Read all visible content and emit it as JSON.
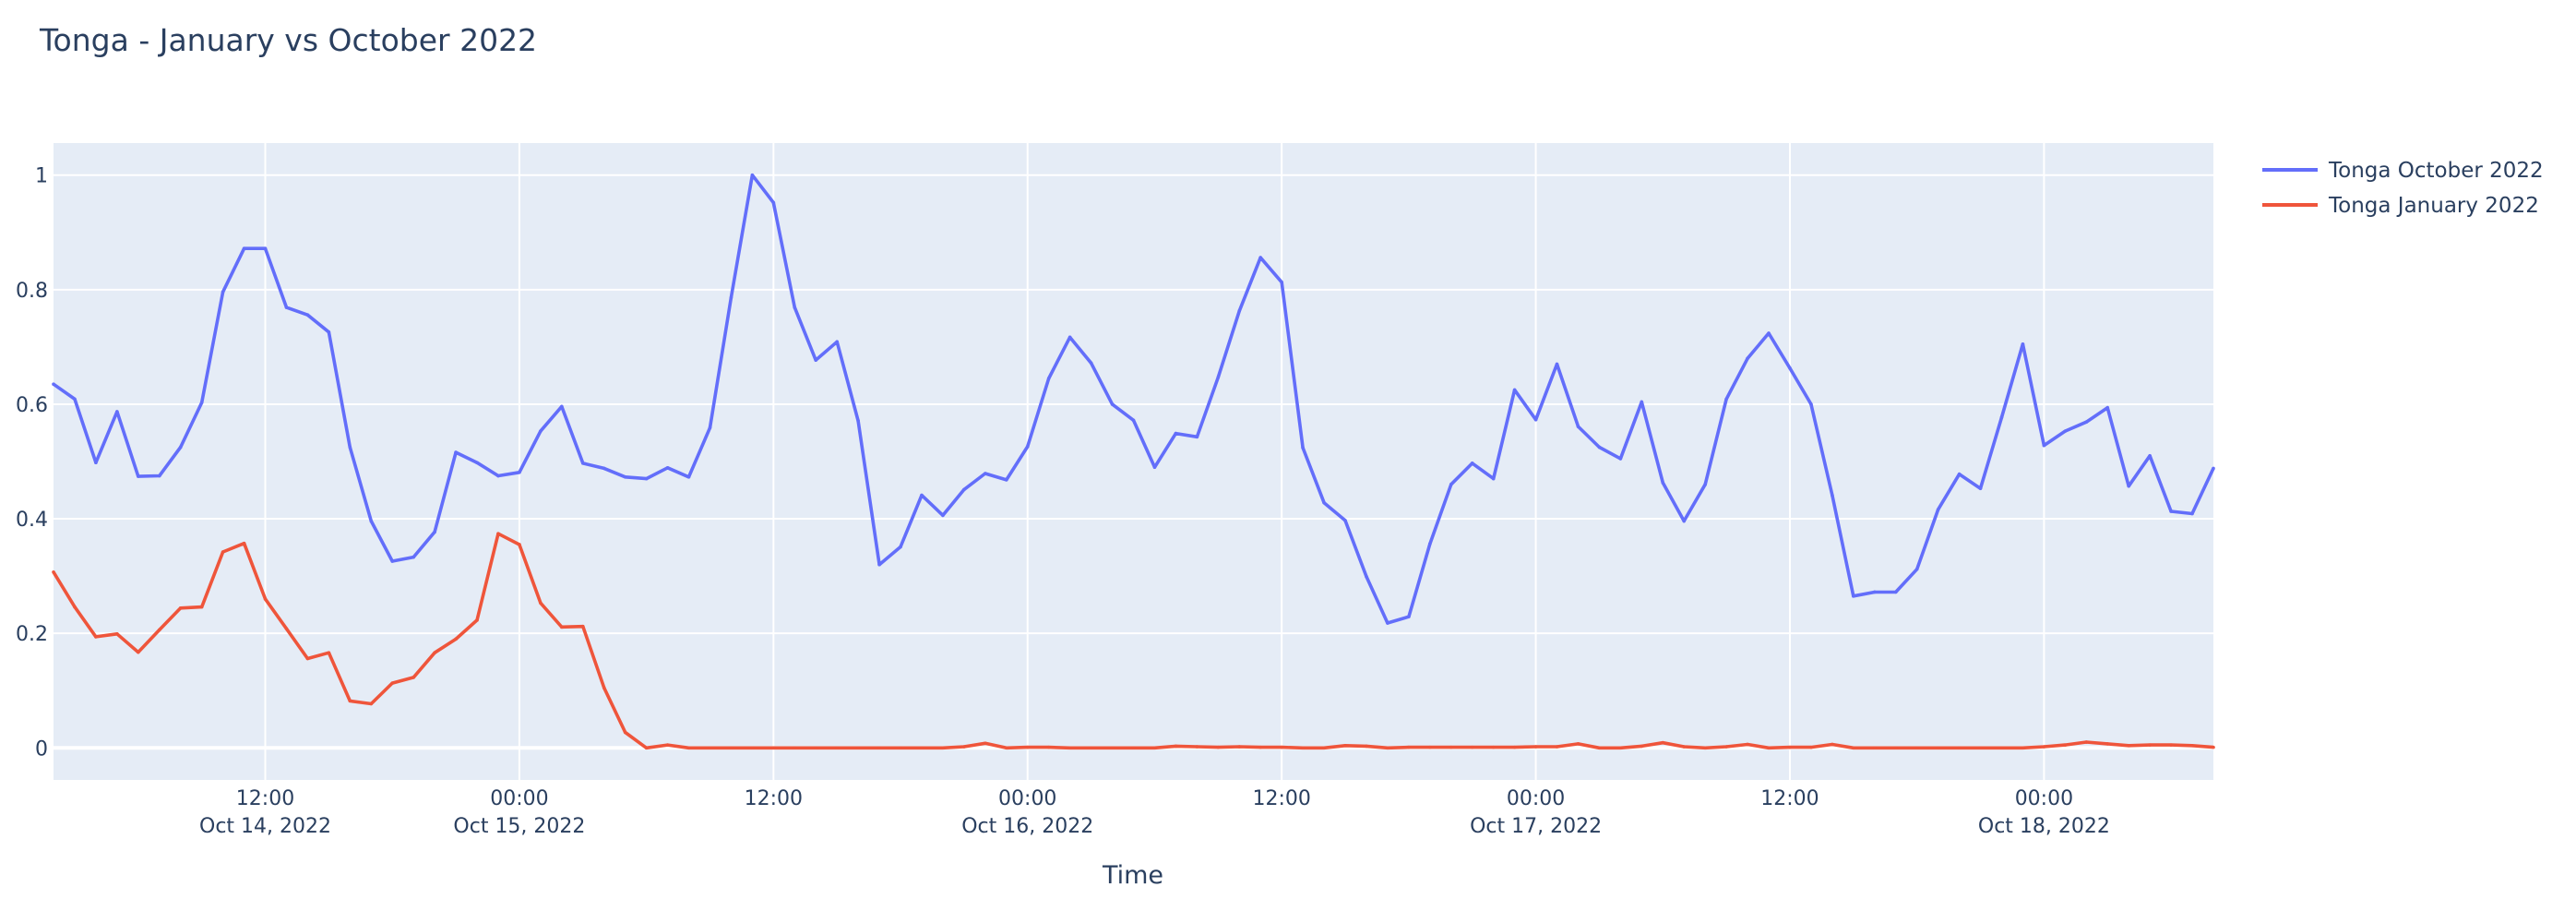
{
  "chart_data": {
    "type": "line",
    "title": "Tonga - January vs October 2022",
    "xlabel": "Time",
    "ylabel": "",
    "xlim": [
      "2022-10-14T02:00",
      "2022-10-18T08:00"
    ],
    "ylim": [
      -0.056,
      1.056
    ],
    "grid": true,
    "legend_position": "top-right, outside plot",
    "background_color": "#E5ECF6",
    "yticks": [
      {
        "value": 0,
        "label": "0"
      },
      {
        "value": 0.2,
        "label": "0.2"
      },
      {
        "value": 0.4,
        "label": "0.4"
      },
      {
        "value": 0.6,
        "label": "0.6"
      },
      {
        "value": 0.8,
        "label": "0.8"
      },
      {
        "value": 1,
        "label": "1"
      }
    ],
    "xticks": [
      {
        "value": "2022-10-14T12:00",
        "label": "12:00",
        "sublabel": "Oct 14, 2022"
      },
      {
        "value": "2022-10-15T00:00",
        "label": "00:00",
        "sublabel": "Oct 15, 2022"
      },
      {
        "value": "2022-10-15T12:00",
        "label": "12:00",
        "sublabel": ""
      },
      {
        "value": "2022-10-16T00:00",
        "label": "00:00",
        "sublabel": "Oct 16, 2022"
      },
      {
        "value": "2022-10-16T12:00",
        "label": "12:00",
        "sublabel": ""
      },
      {
        "value": "2022-10-17T00:00",
        "label": "00:00",
        "sublabel": "Oct 17, 2022"
      },
      {
        "value": "2022-10-17T12:00",
        "label": "12:00",
        "sublabel": ""
      },
      {
        "value": "2022-10-18T00:00",
        "label": "00:00",
        "sublabel": "Oct 18, 2022"
      }
    ],
    "x": [
      "2022-10-14T02:00",
      "2022-10-14T03:00",
      "2022-10-14T04:00",
      "2022-10-14T05:00",
      "2022-10-14T06:00",
      "2022-10-14T07:00",
      "2022-10-14T08:00",
      "2022-10-14T09:00",
      "2022-10-14T10:00",
      "2022-10-14T11:00",
      "2022-10-14T12:00",
      "2022-10-14T13:00",
      "2022-10-14T14:00",
      "2022-10-14T15:00",
      "2022-10-14T16:00",
      "2022-10-14T17:00",
      "2022-10-14T18:00",
      "2022-10-14T19:00",
      "2022-10-14T20:00",
      "2022-10-14T21:00",
      "2022-10-14T22:00",
      "2022-10-14T23:00",
      "2022-10-15T00:00",
      "2022-10-15T01:00",
      "2022-10-15T02:00",
      "2022-10-15T03:00",
      "2022-10-15T04:00",
      "2022-10-15T05:00",
      "2022-10-15T06:00",
      "2022-10-15T07:00",
      "2022-10-15T08:00",
      "2022-10-15T09:00",
      "2022-10-15T10:00",
      "2022-10-15T11:00",
      "2022-10-15T12:00",
      "2022-10-15T13:00",
      "2022-10-15T14:00",
      "2022-10-15T15:00",
      "2022-10-15T16:00",
      "2022-10-15T17:00",
      "2022-10-15T18:00",
      "2022-10-15T19:00",
      "2022-10-15T20:00",
      "2022-10-15T21:00",
      "2022-10-15T22:00",
      "2022-10-15T23:00",
      "2022-10-16T00:00",
      "2022-10-16T01:00",
      "2022-10-16T02:00",
      "2022-10-16T03:00",
      "2022-10-16T04:00",
      "2022-10-16T05:00",
      "2022-10-16T06:00",
      "2022-10-16T07:00",
      "2022-10-16T08:00",
      "2022-10-16T09:00",
      "2022-10-16T10:00",
      "2022-10-16T11:00",
      "2022-10-16T12:00",
      "2022-10-16T13:00",
      "2022-10-16T14:00",
      "2022-10-16T15:00",
      "2022-10-16T16:00",
      "2022-10-16T17:00",
      "2022-10-16T18:00",
      "2022-10-16T19:00",
      "2022-10-16T20:00",
      "2022-10-16T21:00",
      "2022-10-16T22:00",
      "2022-10-16T23:00",
      "2022-10-17T00:00",
      "2022-10-17T01:00",
      "2022-10-17T02:00",
      "2022-10-17T03:00",
      "2022-10-17T04:00",
      "2022-10-17T05:00",
      "2022-10-17T06:00",
      "2022-10-17T07:00",
      "2022-10-17T08:00",
      "2022-10-17T09:00",
      "2022-10-17T10:00",
      "2022-10-17T11:00",
      "2022-10-17T12:00",
      "2022-10-17T13:00",
      "2022-10-17T14:00",
      "2022-10-17T15:00",
      "2022-10-17T16:00",
      "2022-10-17T17:00",
      "2022-10-17T18:00",
      "2022-10-17T19:00",
      "2022-10-17T20:00",
      "2022-10-17T21:00",
      "2022-10-17T22:00",
      "2022-10-17T23:00",
      "2022-10-18T00:00",
      "2022-10-18T01:00",
      "2022-10-18T02:00",
      "2022-10-18T03:00",
      "2022-10-18T04:00",
      "2022-10-18T05:00",
      "2022-10-18T06:00",
      "2022-10-18T07:00",
      "2022-10-18T08:00"
    ],
    "series": [
      {
        "name": "Tonga October 2022",
        "color": "#636EFA",
        "values": [
          0.635,
          0.609,
          0.498,
          0.587,
          0.474,
          0.475,
          0.525,
          0.603,
          0.796,
          0.872,
          0.872,
          0.769,
          0.756,
          0.726,
          0.525,
          0.396,
          0.326,
          0.333,
          0.377,
          0.516,
          0.498,
          0.475,
          0.481,
          0.553,
          0.596,
          0.497,
          0.488,
          0.473,
          0.47,
          0.489,
          0.473,
          0.559,
          0.786,
          1.0,
          0.952,
          0.769,
          0.677,
          0.709,
          0.571,
          0.32,
          0.351,
          0.441,
          0.406,
          0.451,
          0.479,
          0.468,
          0.526,
          0.645,
          0.717,
          0.672,
          0.6,
          0.572,
          0.49,
          0.549,
          0.543,
          0.647,
          0.763,
          0.856,
          0.813,
          0.524,
          0.428,
          0.397,
          0.299,
          0.218,
          0.229,
          0.356,
          0.46,
          0.497,
          0.47,
          0.625,
          0.573,
          0.67,
          0.561,
          0.525,
          0.505,
          0.604,
          0.463,
          0.396,
          0.46,
          0.609,
          0.68,
          0.724,
          0.663,
          0.6,
          0.441,
          0.265,
          0.272,
          0.272,
          0.312,
          0.416,
          0.478,
          0.453,
          0.577,
          0.705,
          0.528,
          0.553,
          0.569,
          0.594,
          0.457,
          0.51,
          0.413,
          0.409,
          0.488
        ]
      },
      {
        "name": "Tonga January 2022",
        "color": "#EF553B",
        "values": [
          0.307,
          0.246,
          0.194,
          0.199,
          0.167,
          0.206,
          0.244,
          0.246,
          0.342,
          0.357,
          0.26,
          0.208,
          0.156,
          0.166,
          0.082,
          0.077,
          0.113,
          0.123,
          0.166,
          0.19,
          0.223,
          0.374,
          0.355,
          0.253,
          0.211,
          0.212,
          0.105,
          0.027,
          0.0,
          0.005,
          0.0,
          0.0,
          0.0,
          0.0,
          0.0,
          0.0,
          0.0,
          0.0,
          0.0,
          0.0,
          0.0,
          0.0,
          0.0,
          0.002,
          0.008,
          0.0,
          0.001,
          0.001,
          0.0,
          0.0,
          0.0,
          0.0,
          0.0,
          0.003,
          0.002,
          0.001,
          0.002,
          0.001,
          0.001,
          0.0,
          0.0,
          0.004,
          0.003,
          0.0,
          0.001,
          0.001,
          0.001,
          0.001,
          0.001,
          0.001,
          0.002,
          0.002,
          0.007,
          0.0,
          0.0,
          0.003,
          0.009,
          0.002,
          0.0,
          0.002,
          0.006,
          0.0,
          0.001,
          0.001,
          0.006,
          0.0,
          0.0,
          0.0,
          0.0,
          0.0,
          0.0,
          0.0,
          0.0,
          0.0,
          0.002,
          0.005,
          0.01,
          0.007,
          0.004,
          0.005,
          0.005,
          0.004,
          0.001
        ]
      }
    ]
  }
}
